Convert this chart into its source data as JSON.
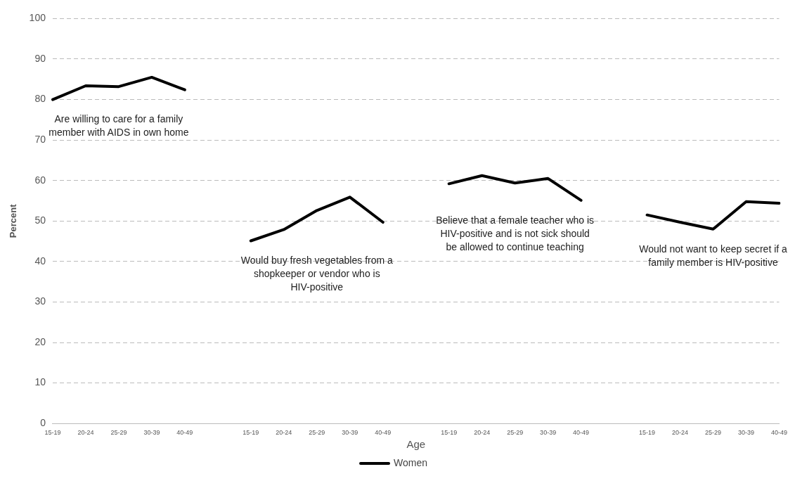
{
  "chart_data": {
    "type": "line",
    "xlabel": "Age",
    "ylabel": "Percent",
    "categories": [
      "15-19",
      "20-24",
      "25-29",
      "30-39",
      "40-49",
      null,
      "15-19",
      "20-24",
      "25-29",
      "30-39",
      "40-49",
      null,
      "15-19",
      "20-24",
      "25-29",
      "30-39",
      "40-49",
      null,
      "15-19",
      "20-24",
      "25-29",
      "30-39",
      "40-49"
    ],
    "series": [
      {
        "name": "Women",
        "color": "#000000",
        "values": [
          80,
          83.4,
          83.2,
          85.5,
          82.4,
          null,
          45.1,
          47.9,
          52.6,
          55.9,
          49.7,
          null,
          59.2,
          61.2,
          59.4,
          60.5,
          55.1,
          null,
          51.5,
          49.7,
          48.0,
          54.8,
          54.4
        ]
      }
    ],
    "ylim": [
      0,
      100
    ],
    "yticks": [
      0,
      10,
      20,
      30,
      40,
      50,
      60,
      70,
      80,
      90,
      100
    ],
    "grid": "y",
    "legend": "bottom",
    "marker": "none",
    "line_style": "solid",
    "annotations": [
      "Are willing to care for a family member with AIDS in own home",
      "Would buy fresh vegetables from a shopkeeper or vendor who is HIV-positive",
      "Believe that a female teacher who is HIV-positive and is not sick should be allowed to continue teaching",
      "Would not want to keep secret if a family member is HIV-positive"
    ]
  }
}
